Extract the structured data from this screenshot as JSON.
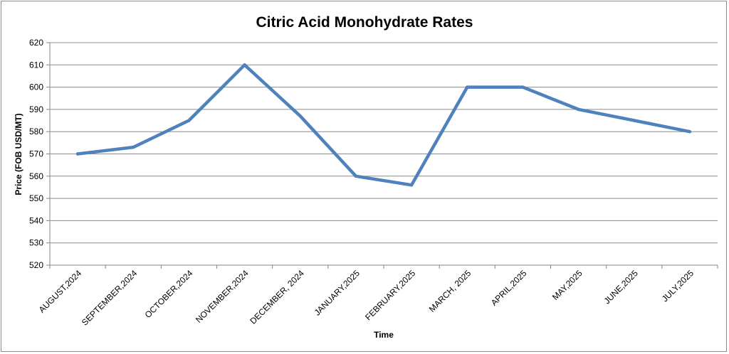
{
  "chart_data": {
    "type": "line",
    "title": "Citric Acid Monohydrate Rates",
    "xlabel": "Time",
    "ylabel": "Price (FOB USD/MT)",
    "ylim": [
      520,
      620
    ],
    "ystep": 10,
    "grid": true,
    "legend": "none",
    "categories": [
      "AUGUST,2024",
      "SEPTEMBER,2024",
      "OCTOBER,2024",
      "NOVEMBER,2024",
      "DECEMBER, 2024",
      "JANUARY,2025",
      "FEBRUARY,2025",
      "MARCH, 2025",
      "APRIL,2025",
      "MAY,2025",
      "JUNE,2025",
      "JULY,2025"
    ],
    "series": [
      {
        "values": [
          570,
          573,
          585,
          610,
          587,
          560,
          556,
          600,
          600,
          590,
          585,
          580
        ],
        "color": "#4f81bd"
      }
    ]
  }
}
